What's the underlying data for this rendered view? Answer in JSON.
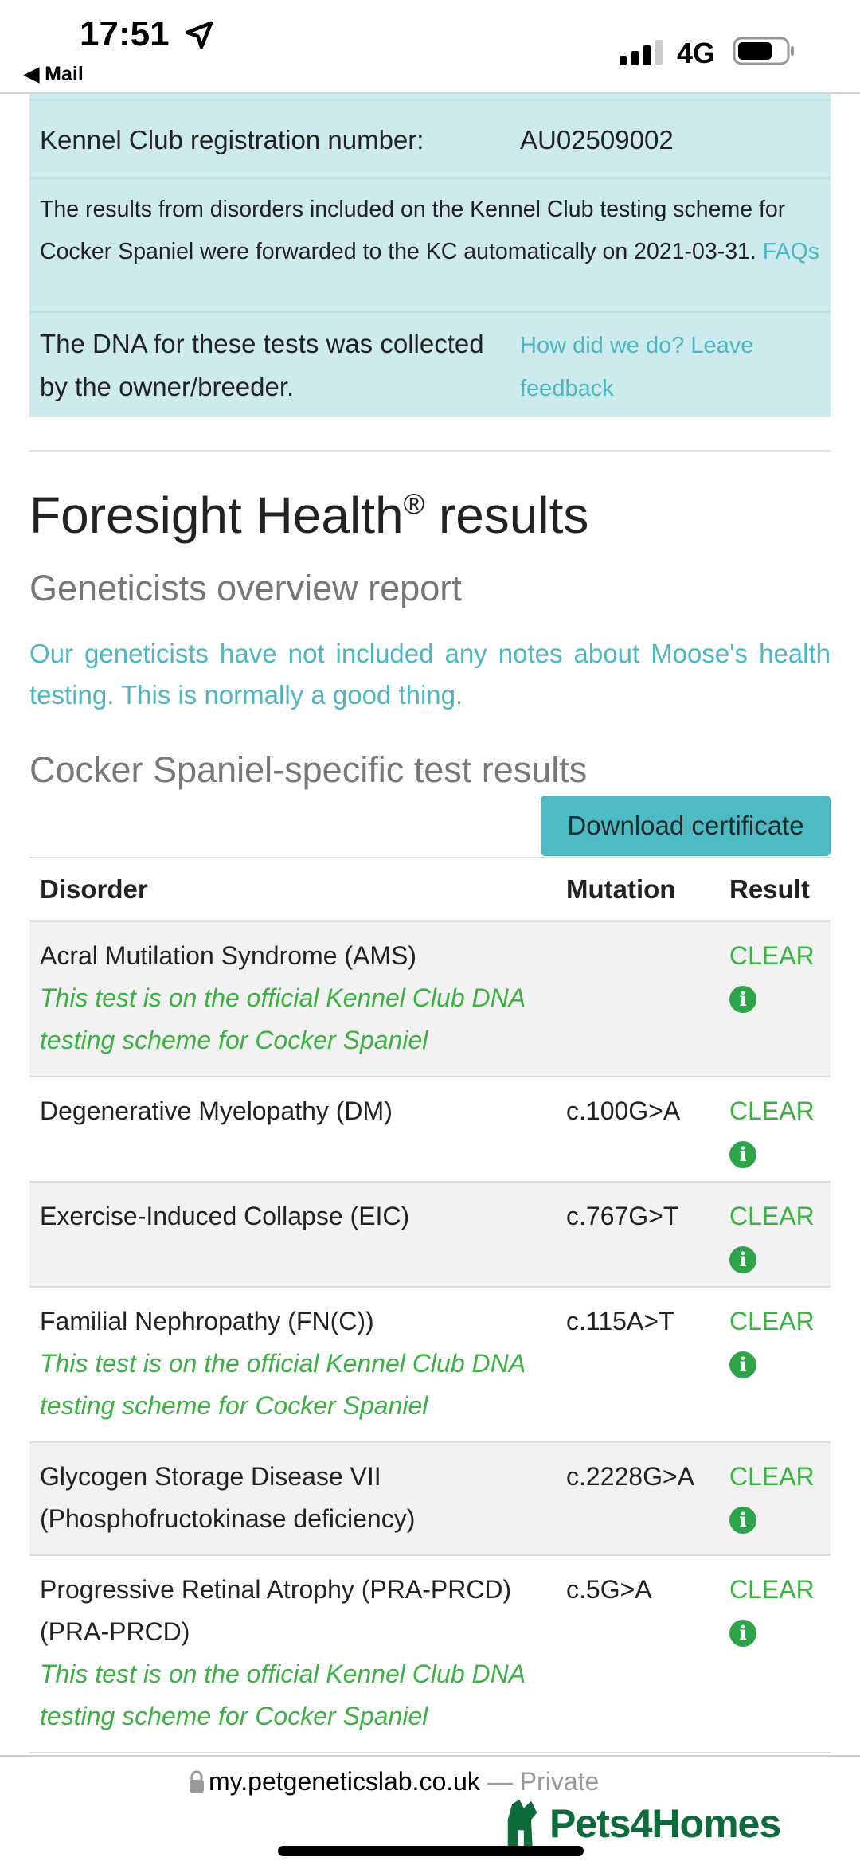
{
  "status_bar": {
    "time": "17:51",
    "back_label": "◀ Mail",
    "network": "4G",
    "icons": [
      "location-arrow-icon",
      "signal-icon",
      "battery-icon"
    ]
  },
  "kennel_box": {
    "reg_label": "Kennel Club registration number:",
    "reg_value": "AU02509002",
    "forward_text": "The results from disorders included on the Kennel Club testing scheme for Cocker Spaniel were forwarded to the KC automatically on 2021-03-31.",
    "faqs_link": "FAQs",
    "dna_text": "The DNA for these tests was collected by the owner/breeder.",
    "feedback_link": "How did we do? Leave feedback"
  },
  "main": {
    "title": "Foresight Health",
    "title_reg": "®",
    "title_end": " results",
    "overview_heading": "Geneticists overview report",
    "overview_text": "Our geneticists have not included any notes about Moose's health testing. This is normally a good thing.",
    "breed_heading": "Cocker Spaniel-specific test results",
    "download_button": "Download certificate"
  },
  "table": {
    "headers": [
      "Disorder",
      "Mutation",
      "Result"
    ],
    "rows": [
      {
        "disorder": "Acral Mutilation Syndrome (AMS)",
        "note": "This test is on the official Kennel Club DNA testing scheme for Cocker Spaniel",
        "mutation": "",
        "result": "CLEAR"
      },
      {
        "disorder": "Degenerative Myelopathy (DM)",
        "note": "",
        "mutation": "c.100G>A",
        "result": "CLEAR"
      },
      {
        "disorder": "Exercise-Induced Collapse (EIC)",
        "note": "",
        "mutation": "c.767G>T",
        "result": "CLEAR"
      },
      {
        "disorder": "Familial Nephropathy (FN(C))",
        "note": "This test is on the official Kennel Club DNA testing scheme for Cocker Spaniel",
        "mutation": "c.115A>T",
        "result": "CLEAR"
      },
      {
        "disorder": "Glycogen Storage Disease VII (Phosphofructokinase deficiency)",
        "note": "",
        "mutation": "c.2228G>A",
        "result": "CLEAR"
      },
      {
        "disorder": "Progressive Retinal Atrophy (PRA-PRCD) (PRA-PRCD)",
        "note": "This test is on the official Kennel Club DNA testing scheme for Cocker Spaniel",
        "mutation": "c.5G>A",
        "result": "CLEAR"
      }
    ],
    "info_glyph": "i"
  },
  "browser": {
    "url": "my.petgeneticslab.co.uk",
    "private": " — Private"
  },
  "watermark": "Pets4Homes",
  "colors": {
    "accent": "#4dbac4",
    "clear": "#3cb043",
    "kc_box": "#cdebec",
    "watermark": "#0e6b3a"
  }
}
